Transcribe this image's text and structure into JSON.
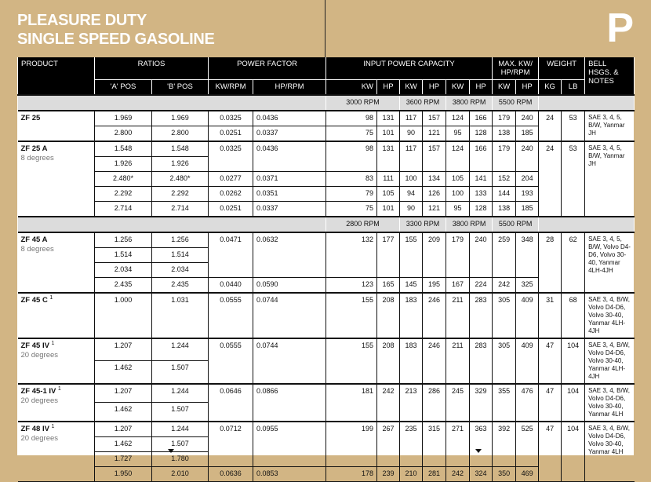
{
  "header": {
    "title_line1": "PLEASURE DUTY",
    "title_line2": "SINGLE SPEED GASOLINE",
    "section_letter": "P"
  },
  "columns": {
    "product": "PRODUCT",
    "ratios": "RATIOS",
    "power_factor": "POWER FACTOR",
    "input_power_capacity": "INPUT POWER CAPACITY",
    "max_kw": "MAX. KW/ HP/RPM",
    "weight": "WEIGHT",
    "bell": "BELL HSGS. & NOTES",
    "a_pos": "'A' POS",
    "b_pos": "'B' POS",
    "kw_rpm": "KW/RPM",
    "hp_rpm": "HP/RPM",
    "kw": "KW",
    "hp": "HP",
    "kg": "KG",
    "lb": "LB"
  },
  "sections": [
    {
      "rpm": [
        "3000 RPM",
        "3600 RPM",
        "3800 RPM",
        "5500 RPM"
      ],
      "groups": [
        {
          "product": "ZF 25",
          "sup": "",
          "subtitle": "",
          "kg": "24",
          "lb": "53",
          "notes": "SAE 3, 4, 5, B/W, Yanmar JH",
          "rows": [
            {
              "a": "1.969",
              "b": "1.969",
              "kw_rpm": "0.0325",
              "hp_rpm": "0.0436",
              "cap": [
                "98",
                "131",
                "117",
                "157",
                "124",
                "166",
                "179",
                "240"
              ]
            },
            {
              "a": "2.800",
              "b": "2.800",
              "kw_rpm": "0.0251",
              "hp_rpm": "0.0337",
              "cap": [
                "75",
                "101",
                "90",
                "121",
                "95",
                "128",
                "138",
                "185"
              ]
            }
          ]
        },
        {
          "product": "ZF 25 A",
          "sup": "",
          "subtitle": "8 degrees",
          "kg": "24",
          "lb": "53",
          "notes": "SAE 3, 4, 5, B/W, Yanmar JH",
          "rows": [
            {
              "a": "1.548",
              "b": "1.548",
              "kw_rpm": "0.0325",
              "hp_rpm": "0.0436",
              "cap": [
                "98",
                "131",
                "117",
                "157",
                "124",
                "166",
                "179",
                "240"
              ]
            },
            {
              "a": "1.926",
              "b": "1.926"
            },
            {
              "a": "2.480*",
              "b": "2.480*",
              "kw_rpm": "0.0277",
              "hp_rpm": "0.0371",
              "cap": [
                "83",
                "111",
                "100",
                "134",
                "105",
                "141",
                "152",
                "204"
              ]
            },
            {
              "a": "2.292",
              "b": "2.292",
              "kw_rpm": "0.0262",
              "hp_rpm": "0.0351",
              "cap": [
                "79",
                "105",
                "94",
                "126",
                "100",
                "133",
                "144",
                "193"
              ]
            },
            {
              "a": "2.714",
              "b": "2.714",
              "kw_rpm": "0.0251",
              "hp_rpm": "0.0337",
              "cap": [
                "75",
                "101",
                "90",
                "121",
                "95",
                "128",
                "138",
                "185"
              ]
            }
          ]
        }
      ]
    },
    {
      "rpm": [
        "2800 RPM",
        "3300 RPM",
        "3800 RPM",
        "5500 RPM"
      ],
      "groups": [
        {
          "product": "ZF 45 A",
          "sup": "",
          "subtitle": "8 degrees",
          "kg": "28",
          "lb": "62",
          "notes": "SAE 3, 4, 5, B/W, Volvo D4-D6, Volvo 30-40, Yanmar 4LH-4JH",
          "rows": [
            {
              "a": "1.256",
              "b": "1.256",
              "kw_rpm": "0.0471",
              "hp_rpm": "0.0632",
              "cap": [
                "132",
                "177",
                "155",
                "209",
                "179",
                "240",
                "259",
                "348"
              ]
            },
            {
              "a": "1.514",
              "b": "1.514"
            },
            {
              "a": "2.034",
              "b": "2.034"
            },
            {
              "a": "2.435",
              "b": "2.435",
              "kw_rpm": "0.0440",
              "hp_rpm": "0.0590",
              "cap": [
                "123",
                "165",
                "145",
                "195",
                "167",
                "224",
                "242",
                "325"
              ]
            }
          ]
        },
        {
          "product": "ZF 45 C",
          "sup": "1",
          "subtitle": "",
          "kg": "31",
          "lb": "68",
          "notes": "SAE 3, 4, B/W, Volvo D4-D6, Volvo 30-40, Yanmar 4LH-4JH",
          "rows": [
            {
              "a": "1.000",
              "b": "1.031",
              "kw_rpm": "0.0555",
              "hp_rpm": "0.0744",
              "cap": [
                "155",
                "208",
                "183",
                "246",
                "211",
                "283",
                "305",
                "409"
              ]
            }
          ]
        },
        {
          "product": "ZF 45 IV",
          "sup": "1",
          "subtitle": "20 degrees",
          "kg": "47",
          "lb": "104",
          "notes": "SAE 3, 4, B/W, Volvo D4-D6, Volvo 30-40, Yanmar 4LH-4JH",
          "rows": [
            {
              "a": "1.207",
              "b": "1.244",
              "kw_rpm": "0.0555",
              "hp_rpm": "0.0744",
              "cap": [
                "155",
                "208",
                "183",
                "246",
                "211",
                "283",
                "305",
                "409"
              ]
            },
            {
              "a": "1.462",
              "b": "1.507"
            }
          ]
        },
        {
          "product": "ZF 45-1 IV",
          "sup": "1",
          "subtitle": "20 degrees",
          "kg": "47",
          "lb": "104",
          "notes": "SAE 3, 4, B/W, Volvo D4-D6, Volvo 30-40, Yanmar 4LH",
          "rows": [
            {
              "a": "1.207",
              "b": "1.244",
              "kw_rpm": "0.0646",
              "hp_rpm": "0.0866",
              "cap": [
                "181",
                "242",
                "213",
                "286",
                "245",
                "329",
                "355",
                "476"
              ]
            },
            {
              "a": "1.462",
              "b": "1.507"
            }
          ]
        },
        {
          "product": "ZF 48 IV",
          "sup": "1",
          "subtitle": "20 degrees",
          "kg": "47",
          "lb": "104",
          "notes": "SAE 3, 4, B/W, Volvo D4-D6, Volvo 30-40, Yanmar 4LH",
          "rows": [
            {
              "a": "1.207",
              "b": "1.244",
              "kw_rpm": "0.0712",
              "hp_rpm": "0.0955",
              "cap": [
                "199",
                "267",
                "235",
                "315",
                "271",
                "363",
                "392",
                "525"
              ]
            },
            {
              "a": "1.462",
              "b": "1.507"
            },
            {
              "a": "1.727",
              "b": "1.780"
            },
            {
              "a": "1.950",
              "b": "2.010",
              "kw_rpm": "0.0636",
              "hp_rpm": "0.0853",
              "cap": [
                "178",
                "239",
                "210",
                "281",
                "242",
                "324",
                "350",
                "469"
              ]
            }
          ]
        }
      ]
    }
  ]
}
